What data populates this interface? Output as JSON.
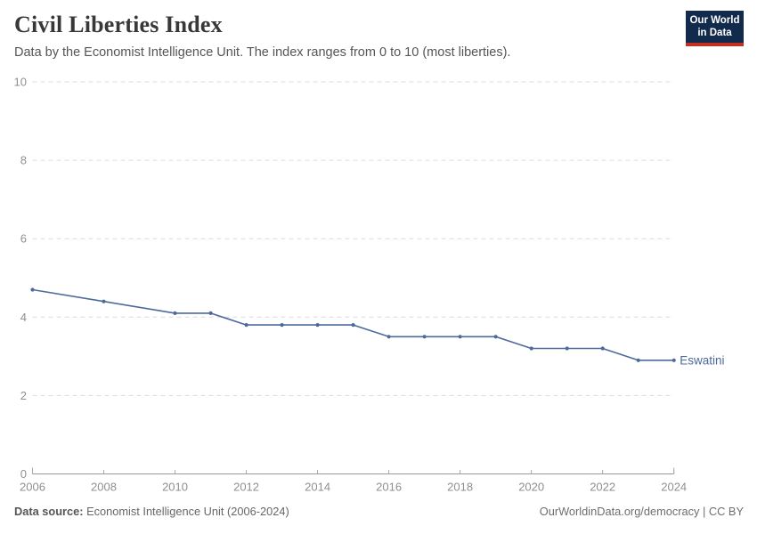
{
  "header": {
    "title": "Civil Liberties Index",
    "subtitle": "Data by the Economist Intelligence Unit. The index ranges from 0 to 10 (most liberties).",
    "logo": {
      "line1": "Our World",
      "line2": "in Data"
    }
  },
  "footer": {
    "source_label": "Data source:",
    "source_text": " Economist Intelligence Unit (2006-2024)",
    "link_text": "OurWorldinData.org/democracy | CC BY"
  },
  "colors": {
    "series": "#4C6A9C",
    "grid": "#dcdcdc",
    "axis": "#9a9a9a",
    "tick": "#a8a8a8",
    "tick_label": "#8f8f8f",
    "logo_bg": "#122B4D",
    "logo_accent": "#C4301F",
    "title": "#383838",
    "subtitle": "#555555"
  },
  "chart_data": {
    "type": "line",
    "title": "Civil Liberties Index",
    "xlabel": "",
    "ylabel": "",
    "xlim": [
      2006,
      2024
    ],
    "ylim": [
      0,
      10
    ],
    "xticks": [
      2006,
      2008,
      2010,
      2012,
      2014,
      2016,
      2018,
      2020,
      2022,
      2024
    ],
    "yticks": [
      0,
      2,
      4,
      6,
      8,
      10
    ],
    "grid": "horizontal-dashed",
    "legend_position": "end-of-line-label",
    "series": [
      {
        "name": "Eswatini",
        "color": "#4C6A9C",
        "points": [
          [
            2006,
            4.7
          ],
          [
            2008,
            4.4
          ],
          [
            2010,
            4.1
          ],
          [
            2011,
            4.1
          ],
          [
            2012,
            3.8
          ],
          [
            2013,
            3.8
          ],
          [
            2014,
            3.8
          ],
          [
            2015,
            3.8
          ],
          [
            2016,
            3.5
          ],
          [
            2017,
            3.5
          ],
          [
            2018,
            3.5
          ],
          [
            2019,
            3.5
          ],
          [
            2020,
            3.2
          ],
          [
            2021,
            3.2
          ],
          [
            2022,
            3.2
          ],
          [
            2023,
            2.9
          ],
          [
            2024,
            2.9
          ]
        ]
      }
    ]
  }
}
